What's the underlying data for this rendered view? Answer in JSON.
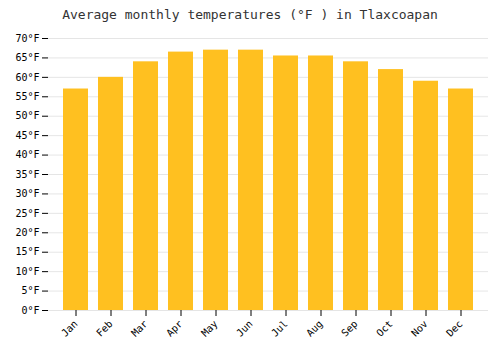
{
  "chart_data": {
    "type": "bar",
    "title": "Average monthly temperatures (°F ) in Tlaxcoapan",
    "categories": [
      "Jan",
      "Feb",
      "Mar",
      "Apr",
      "May",
      "Jun",
      "Jul",
      "Aug",
      "Sep",
      "Oct",
      "Nov",
      "Dec"
    ],
    "values": [
      57.0,
      60.0,
      64.0,
      66.5,
      67.0,
      67.0,
      65.5,
      65.5,
      64.0,
      62.0,
      59.0,
      57.0
    ],
    "color": "#FFC020",
    "ylim": [
      0,
      70
    ],
    "yticks": [
      {
        "value": 0,
        "label": "0°F"
      },
      {
        "value": 5,
        "label": "5°F"
      },
      {
        "value": 10,
        "label": "10°F"
      },
      {
        "value": 15,
        "label": "15°F"
      },
      {
        "value": 20,
        "label": "20°F"
      },
      {
        "value": 25,
        "label": "25°F"
      },
      {
        "value": 30,
        "label": "30°F"
      },
      {
        "value": 35,
        "label": "35°F"
      },
      {
        "value": 40,
        "label": "40°F"
      },
      {
        "value": 45,
        "label": "45°F"
      },
      {
        "value": 50,
        "label": "50°F"
      },
      {
        "value": 55,
        "label": "55°F"
      },
      {
        "value": 60,
        "label": "60°F"
      },
      {
        "value": 65,
        "label": "65°F"
      },
      {
        "value": 70,
        "label": "70°F"
      }
    ],
    "grid": true
  }
}
